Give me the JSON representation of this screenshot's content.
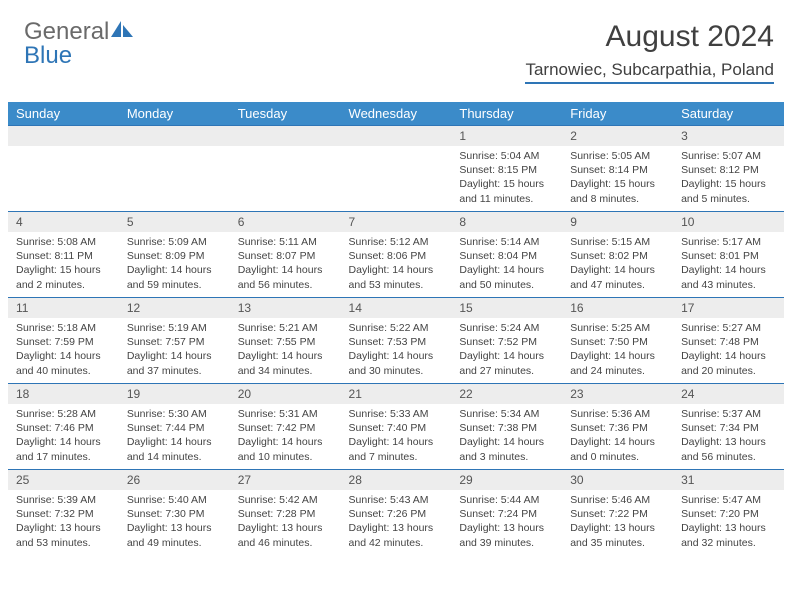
{
  "logo": {
    "text_gray": "General",
    "text_blue": "Blue"
  },
  "title": "August 2024",
  "location": "Tarnowiec, Subcarpathia, Poland",
  "colors": {
    "header_bg": "#3b8bc9",
    "header_text": "#ffffff",
    "daynum_bg": "#ededed",
    "border": "#2e75b6",
    "logo_gray": "#6a6a6a",
    "logo_blue": "#2e75b6",
    "title_color": "#404040"
  },
  "weekdays": [
    "Sunday",
    "Monday",
    "Tuesday",
    "Wednesday",
    "Thursday",
    "Friday",
    "Saturday"
  ],
  "weeks": [
    [
      {
        "n": "",
        "lines": []
      },
      {
        "n": "",
        "lines": []
      },
      {
        "n": "",
        "lines": []
      },
      {
        "n": "",
        "lines": []
      },
      {
        "n": "1",
        "lines": [
          "Sunrise: 5:04 AM",
          "Sunset: 8:15 PM",
          "Daylight: 15 hours",
          "and 11 minutes."
        ]
      },
      {
        "n": "2",
        "lines": [
          "Sunrise: 5:05 AM",
          "Sunset: 8:14 PM",
          "Daylight: 15 hours",
          "and 8 minutes."
        ]
      },
      {
        "n": "3",
        "lines": [
          "Sunrise: 5:07 AM",
          "Sunset: 8:12 PM",
          "Daylight: 15 hours",
          "and 5 minutes."
        ]
      }
    ],
    [
      {
        "n": "4",
        "lines": [
          "Sunrise: 5:08 AM",
          "Sunset: 8:11 PM",
          "Daylight: 15 hours",
          "and 2 minutes."
        ]
      },
      {
        "n": "5",
        "lines": [
          "Sunrise: 5:09 AM",
          "Sunset: 8:09 PM",
          "Daylight: 14 hours",
          "and 59 minutes."
        ]
      },
      {
        "n": "6",
        "lines": [
          "Sunrise: 5:11 AM",
          "Sunset: 8:07 PM",
          "Daylight: 14 hours",
          "and 56 minutes."
        ]
      },
      {
        "n": "7",
        "lines": [
          "Sunrise: 5:12 AM",
          "Sunset: 8:06 PM",
          "Daylight: 14 hours",
          "and 53 minutes."
        ]
      },
      {
        "n": "8",
        "lines": [
          "Sunrise: 5:14 AM",
          "Sunset: 8:04 PM",
          "Daylight: 14 hours",
          "and 50 minutes."
        ]
      },
      {
        "n": "9",
        "lines": [
          "Sunrise: 5:15 AM",
          "Sunset: 8:02 PM",
          "Daylight: 14 hours",
          "and 47 minutes."
        ]
      },
      {
        "n": "10",
        "lines": [
          "Sunrise: 5:17 AM",
          "Sunset: 8:01 PM",
          "Daylight: 14 hours",
          "and 43 minutes."
        ]
      }
    ],
    [
      {
        "n": "11",
        "lines": [
          "Sunrise: 5:18 AM",
          "Sunset: 7:59 PM",
          "Daylight: 14 hours",
          "and 40 minutes."
        ]
      },
      {
        "n": "12",
        "lines": [
          "Sunrise: 5:19 AM",
          "Sunset: 7:57 PM",
          "Daylight: 14 hours",
          "and 37 minutes."
        ]
      },
      {
        "n": "13",
        "lines": [
          "Sunrise: 5:21 AM",
          "Sunset: 7:55 PM",
          "Daylight: 14 hours",
          "and 34 minutes."
        ]
      },
      {
        "n": "14",
        "lines": [
          "Sunrise: 5:22 AM",
          "Sunset: 7:53 PM",
          "Daylight: 14 hours",
          "and 30 minutes."
        ]
      },
      {
        "n": "15",
        "lines": [
          "Sunrise: 5:24 AM",
          "Sunset: 7:52 PM",
          "Daylight: 14 hours",
          "and 27 minutes."
        ]
      },
      {
        "n": "16",
        "lines": [
          "Sunrise: 5:25 AM",
          "Sunset: 7:50 PM",
          "Daylight: 14 hours",
          "and 24 minutes."
        ]
      },
      {
        "n": "17",
        "lines": [
          "Sunrise: 5:27 AM",
          "Sunset: 7:48 PM",
          "Daylight: 14 hours",
          "and 20 minutes."
        ]
      }
    ],
    [
      {
        "n": "18",
        "lines": [
          "Sunrise: 5:28 AM",
          "Sunset: 7:46 PM",
          "Daylight: 14 hours",
          "and 17 minutes."
        ]
      },
      {
        "n": "19",
        "lines": [
          "Sunrise: 5:30 AM",
          "Sunset: 7:44 PM",
          "Daylight: 14 hours",
          "and 14 minutes."
        ]
      },
      {
        "n": "20",
        "lines": [
          "Sunrise: 5:31 AM",
          "Sunset: 7:42 PM",
          "Daylight: 14 hours",
          "and 10 minutes."
        ]
      },
      {
        "n": "21",
        "lines": [
          "Sunrise: 5:33 AM",
          "Sunset: 7:40 PM",
          "Daylight: 14 hours",
          "and 7 minutes."
        ]
      },
      {
        "n": "22",
        "lines": [
          "Sunrise: 5:34 AM",
          "Sunset: 7:38 PM",
          "Daylight: 14 hours",
          "and 3 minutes."
        ]
      },
      {
        "n": "23",
        "lines": [
          "Sunrise: 5:36 AM",
          "Sunset: 7:36 PM",
          "Daylight: 14 hours",
          "and 0 minutes."
        ]
      },
      {
        "n": "24",
        "lines": [
          "Sunrise: 5:37 AM",
          "Sunset: 7:34 PM",
          "Daylight: 13 hours",
          "and 56 minutes."
        ]
      }
    ],
    [
      {
        "n": "25",
        "lines": [
          "Sunrise: 5:39 AM",
          "Sunset: 7:32 PM",
          "Daylight: 13 hours",
          "and 53 minutes."
        ]
      },
      {
        "n": "26",
        "lines": [
          "Sunrise: 5:40 AM",
          "Sunset: 7:30 PM",
          "Daylight: 13 hours",
          "and 49 minutes."
        ]
      },
      {
        "n": "27",
        "lines": [
          "Sunrise: 5:42 AM",
          "Sunset: 7:28 PM",
          "Daylight: 13 hours",
          "and 46 minutes."
        ]
      },
      {
        "n": "28",
        "lines": [
          "Sunrise: 5:43 AM",
          "Sunset: 7:26 PM",
          "Daylight: 13 hours",
          "and 42 minutes."
        ]
      },
      {
        "n": "29",
        "lines": [
          "Sunrise: 5:44 AM",
          "Sunset: 7:24 PM",
          "Daylight: 13 hours",
          "and 39 minutes."
        ]
      },
      {
        "n": "30",
        "lines": [
          "Sunrise: 5:46 AM",
          "Sunset: 7:22 PM",
          "Daylight: 13 hours",
          "and 35 minutes."
        ]
      },
      {
        "n": "31",
        "lines": [
          "Sunrise: 5:47 AM",
          "Sunset: 7:20 PM",
          "Daylight: 13 hours",
          "and 32 minutes."
        ]
      }
    ]
  ]
}
